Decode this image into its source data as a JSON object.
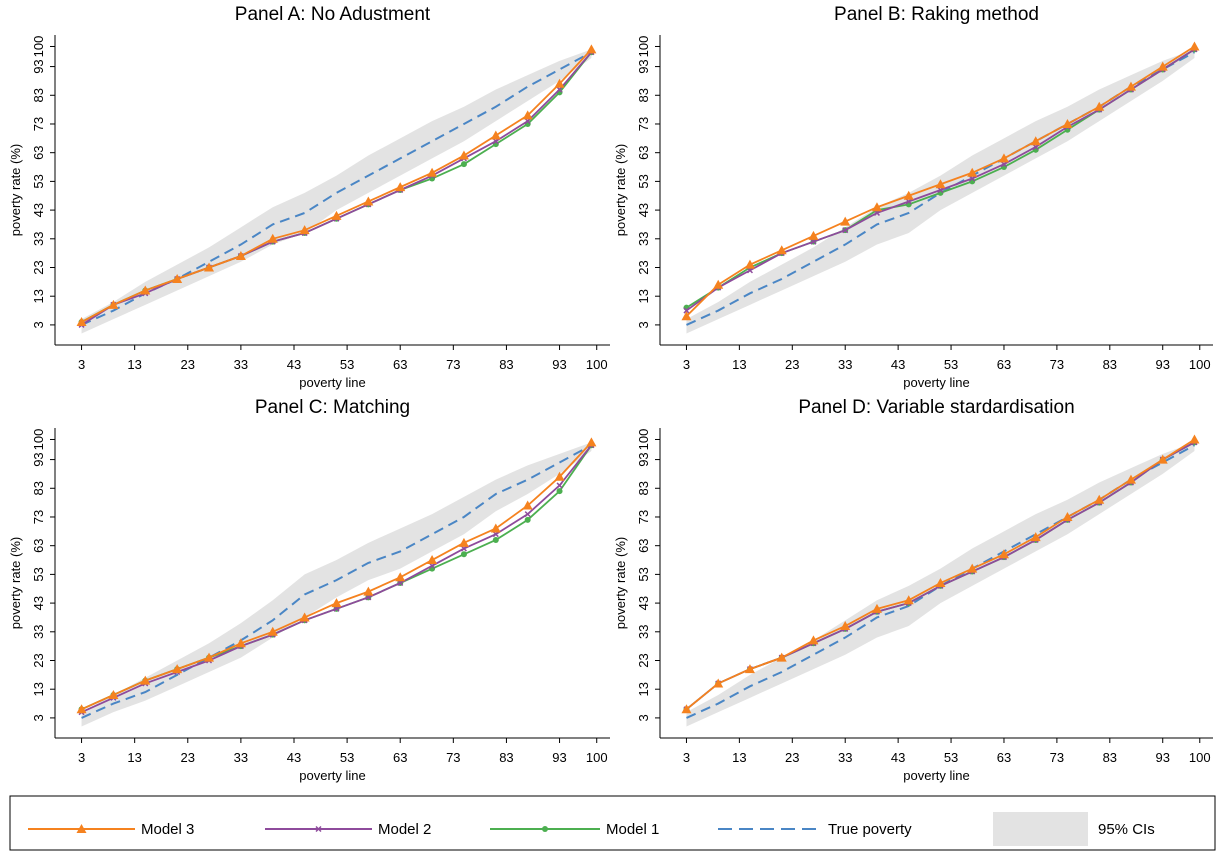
{
  "chart_data": [
    {
      "type": "line",
      "title": "Panel A: No Adustment",
      "xlabel": "poverty line",
      "ylabel": "poverty rate (%)",
      "x": [
        3,
        9,
        15,
        21,
        27,
        33,
        39,
        45,
        51,
        57,
        63,
        69,
        75,
        81,
        87,
        93,
        99
      ],
      "xlim": [
        -2,
        102.5
      ],
      "ylim": [
        -4,
        104
      ],
      "xticks": [
        3,
        13,
        23,
        33,
        43,
        53,
        63,
        73,
        83,
        93,
        100
      ],
      "yticks": [
        3,
        13,
        23,
        33,
        43,
        53,
        63,
        73,
        83,
        93,
        100
      ],
      "series": [
        {
          "values": [
            4,
            10,
            15,
            19,
            23,
            27,
            33,
            36,
            41,
            46,
            51,
            56,
            62,
            69,
            76,
            87,
            99
          ]
        },
        {
          "values": [
            3,
            10,
            14,
            19,
            23,
            27,
            32,
            35,
            40,
            45,
            50,
            55,
            61,
            67,
            74,
            85,
            98
          ]
        },
        {
          "values": [
            4,
            10,
            15,
            19,
            23,
            27,
            32,
            35,
            40,
            45,
            50,
            54,
            59,
            66,
            73,
            84,
            98
          ]
        },
        {
          "values": [
            3,
            8,
            14,
            19,
            25,
            31,
            38,
            42,
            49,
            55,
            61,
            67,
            73,
            79,
            86,
            92,
            98
          ]
        },
        {
          "lower": [
            0,
            5,
            10,
            15,
            20,
            25,
            31,
            35,
            43,
            49,
            55,
            61,
            67,
            74,
            81,
            88,
            96
          ],
          "upper": [
            5,
            11,
            18,
            24,
            30,
            37,
            44,
            49,
            55,
            62,
            68,
            74,
            79,
            85,
            90,
            95,
            99
          ]
        }
      ]
    },
    {
      "type": "line",
      "title": "Panel B: Raking method",
      "xlabel": "poverty line",
      "ylabel": "poverty rate (%)",
      "x": [
        3,
        9,
        15,
        21,
        27,
        33,
        39,
        45,
        51,
        57,
        63,
        69,
        75,
        81,
        87,
        93,
        99
      ],
      "xlim": [
        -2,
        102.5
      ],
      "ylim": [
        -4,
        104
      ],
      "xticks": [
        3,
        13,
        23,
        33,
        43,
        53,
        63,
        73,
        83,
        93,
        100
      ],
      "yticks": [
        3,
        13,
        23,
        33,
        43,
        53,
        63,
        73,
        83,
        93,
        100
      ],
      "series": [
        {
          "values": [
            6,
            17,
            24,
            29,
            34,
            39,
            44,
            48,
            52,
            56,
            61,
            67,
            73,
            79,
            86,
            93,
            100
          ]
        },
        {
          "values": [
            8,
            16,
            22,
            28,
            32,
            36,
            42,
            46,
            50,
            54,
            59,
            65,
            72,
            78,
            85,
            92,
            99
          ]
        },
        {
          "values": [
            9,
            16,
            23,
            28,
            32,
            36,
            43,
            45,
            49,
            53,
            58,
            64,
            71,
            78,
            85,
            92,
            99
          ]
        },
        {
          "values": [
            3,
            8,
            14,
            19,
            25,
            31,
            38,
            42,
            49,
            55,
            61,
            67,
            73,
            79,
            86,
            92,
            98
          ]
        },
        {
          "lower": [
            0,
            5,
            10,
            15,
            20,
            25,
            31,
            35,
            43,
            49,
            55,
            61,
            67,
            74,
            81,
            88,
            96
          ],
          "upper": [
            5,
            11,
            18,
            24,
            30,
            37,
            44,
            49,
            55,
            62,
            68,
            74,
            79,
            85,
            90,
            95,
            99
          ]
        }
      ]
    },
    {
      "type": "line",
      "title": "Panel C: Matching",
      "xlabel": "poverty line",
      "ylabel": "poverty rate (%)",
      "x": [
        3,
        9,
        15,
        21,
        27,
        33,
        39,
        45,
        51,
        57,
        63,
        69,
        75,
        81,
        87,
        93,
        99
      ],
      "xlim": [
        -2,
        102.5
      ],
      "ylim": [
        -4,
        104
      ],
      "xticks": [
        3,
        13,
        23,
        33,
        43,
        53,
        63,
        73,
        83,
        93,
        100
      ],
      "yticks": [
        3,
        13,
        23,
        33,
        43,
        53,
        63,
        73,
        83,
        93,
        100
      ],
      "series": [
        {
          "values": [
            6,
            11,
            16,
            20,
            24,
            29,
            33,
            38,
            43,
            47,
            52,
            58,
            64,
            69,
            77,
            87,
            99
          ]
        },
        {
          "values": [
            5,
            10,
            15,
            19,
            23,
            28,
            32,
            37,
            41,
            45,
            50,
            56,
            62,
            67,
            74,
            84,
            98
          ]
        },
        {
          "values": [
            6,
            11,
            16,
            20,
            24,
            28,
            32,
            37,
            41,
            45,
            50,
            55,
            60,
            65,
            72,
            82,
            98
          ]
        },
        {
          "values": [
            3,
            8,
            12,
            18,
            24,
            30,
            37,
            46,
            51,
            57,
            61,
            67,
            73,
            81,
            86,
            92,
            98
          ]
        },
        {
          "lower": [
            0,
            5,
            9,
            14,
            19,
            24,
            31,
            38,
            45,
            51,
            55,
            61,
            67,
            75,
            81,
            88,
            96
          ],
          "upper": [
            5,
            11,
            17,
            23,
            29,
            36,
            44,
            53,
            58,
            64,
            69,
            74,
            80,
            86,
            91,
            95,
            99
          ]
        }
      ]
    },
    {
      "type": "line",
      "title": "Panel D: Variable stardardisation",
      "xlabel": "poverty line",
      "ylabel": "poverty rate (%)",
      "x": [
        3,
        9,
        15,
        21,
        27,
        33,
        39,
        45,
        51,
        57,
        63,
        69,
        75,
        81,
        87,
        93,
        99
      ],
      "xlim": [
        -2,
        102.5
      ],
      "ylim": [
        -4,
        104
      ],
      "xticks": [
        3,
        13,
        23,
        33,
        43,
        53,
        63,
        73,
        83,
        93,
        100
      ],
      "yticks": [
        3,
        13,
        23,
        33,
        43,
        53,
        63,
        73,
        83,
        93,
        100
      ],
      "series": [
        {
          "values": [
            6,
            15,
            20,
            24,
            30,
            35,
            41,
            44,
            50,
            55,
            60,
            66,
            73,
            79,
            86,
            93,
            100
          ]
        },
        {
          "values": [
            6,
            15,
            20,
            24,
            29,
            34,
            40,
            43,
            49,
            54,
            59,
            65,
            72,
            78,
            85,
            93,
            99
          ]
        },
        {
          "values": [
            6,
            15,
            20,
            24,
            29,
            34,
            40,
            43,
            49,
            54,
            59,
            65,
            72,
            78,
            85,
            93,
            99
          ]
        },
        {
          "values": [
            3,
            8,
            14,
            19,
            25,
            31,
            38,
            42,
            49,
            55,
            61,
            67,
            73,
            79,
            86,
            92,
            98
          ]
        },
        {
          "lower": [
            0,
            5,
            10,
            15,
            20,
            25,
            31,
            35,
            43,
            49,
            55,
            61,
            67,
            74,
            81,
            88,
            96
          ],
          "upper": [
            5,
            11,
            18,
            24,
            30,
            37,
            44,
            49,
            55,
            62,
            68,
            74,
            79,
            85,
            90,
            95,
            99
          ]
        }
      ]
    }
  ],
  "legend": {
    "items": [
      {
        "name": "Model 3",
        "color": "#f5821f",
        "marker": "triangle"
      },
      {
        "name": "Model 2",
        "color": "#8e4b9c",
        "marker": "x"
      },
      {
        "name": "Model 1",
        "color": "#4caf50",
        "marker": "circle"
      },
      {
        "name": "True poverty",
        "color": "#4a86c5",
        "dash": true
      },
      {
        "name": "95% CIs",
        "color": "#e3e3e3",
        "area": true
      }
    ]
  }
}
